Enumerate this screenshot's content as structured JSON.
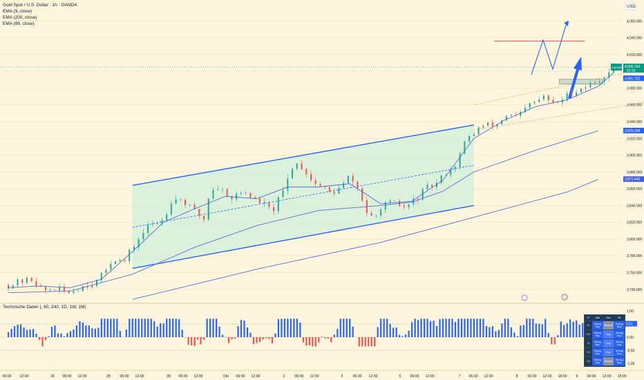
{
  "legend": {
    "title": "Gold Spot / U.S. Dollar · 1h · OANDA",
    "ema9": "EMA (9, close)",
    "ema200": "EMA (200, close)",
    "ema89": "EMA (89, close)"
  },
  "currency": "USD",
  "price_tag": {
    "symbol": "XAUUSD",
    "value": "4,006.760",
    "time": "21:22"
  },
  "level_tags": [
    "3,991.702",
    "3,929.338",
    "3,871.440"
  ],
  "indicator_label": "Technische Daten (, 60, 240, 1D, 1W, 1M)",
  "indicator_value": "0.51",
  "colors": {
    "bull": "#26a69a",
    "bear": "#ef5350",
    "channel": "#2962ff",
    "channel_fill": "#d6f0dc",
    "ema": "#5b6cd6",
    "price_line": "#26a69a",
    "target_line": "#f23645",
    "osc_pos": "#2962ff",
    "osc_neg": "#ef5350"
  },
  "table": {
    "headers": [
      "TF",
      "Abb",
      "Osc",
      "All"
    ],
    "rows": [
      {
        "tf": "60",
        "abb": "Strong Buy",
        "osc": "Neutral",
        "all": "Strong Buy"
      },
      {
        "tf": "240",
        "abb": "Strong Buy",
        "osc": "Buy",
        "all": "Strong Buy"
      },
      {
        "tf": "1D",
        "abb": "Strong Buy",
        "osc": "Buy",
        "all": "Strong Buy"
      },
      {
        "tf": "1W",
        "abb": "Strong Buy",
        "osc": "Buy",
        "all": "Strong Buy"
      },
      {
        "tf": "1M",
        "abb": "Strong Buy",
        "osc": "Neutral",
        "all": "Strong Buy"
      }
    ]
  },
  "chart_data": [
    {
      "type": "candlestick",
      "title": "Gold Spot / U.S. Dollar · 1h · OANDA",
      "ylim": [
        3725,
        4085
      ],
      "yticks": [
        "4,060.000",
        "4,040.000",
        "4,020.000",
        "4,000.000",
        "3,980.000",
        "3,960.000",
        "3,940.000",
        "3,920.000",
        "3,900.000",
        "3,880.000",
        "3,860.000",
        "3,840.000",
        "3,820.000",
        "3,800.000",
        "3,780.000",
        "3,760.000",
        "3,740.000"
      ],
      "yvalues": [
        4060,
        4040,
        4020,
        4000,
        3980,
        3960,
        3940,
        3920,
        3900,
        3880,
        3860,
        3840,
        3820,
        3800,
        3780,
        3760,
        3740
      ],
      "xticks": [
        "06:00",
        "12:00",
        "26",
        "06:00",
        "12:00",
        "28",
        "06:00",
        "12:00",
        "30",
        "06:00",
        "12:00",
        "Okt",
        "06:00",
        "12:00",
        "2",
        "06:00",
        "12:00",
        "3",
        "06:00",
        "12:00",
        "5",
        "06:00",
        "12:00",
        "7",
        "06:00",
        "12:00",
        "8",
        "06:00",
        "12:00",
        "18:00",
        "9",
        "06:00",
        "12:00",
        "18:00"
      ],
      "price_path": [
        [
          0,
          3745
        ],
        [
          10,
          3750
        ],
        [
          16,
          3752
        ],
        [
          22,
          3738
        ],
        [
          30,
          3741
        ],
        [
          38,
          3736
        ],
        [
          48,
          3744
        ],
        [
          58,
          3750
        ],
        [
          66,
          3773
        ],
        [
          70,
          3778
        ],
        [
          74,
          3770
        ],
        [
          80,
          3790
        ],
        [
          90,
          3815
        ],
        [
          100,
          3824
        ],
        [
          105,
          3846
        ],
        [
          110,
          3849
        ],
        [
          118,
          3836
        ],
        [
          126,
          3824
        ],
        [
          130,
          3858
        ],
        [
          134,
          3862
        ],
        [
          138,
          3858
        ],
        [
          144,
          3849
        ],
        [
          152,
          3857
        ],
        [
          160,
          3845
        ],
        [
          164,
          3843
        ],
        [
          170,
          3832
        ],
        [
          178,
          3860
        ],
        [
          184,
          3892
        ],
        [
          190,
          3885
        ],
        [
          196,
          3868
        ],
        [
          204,
          3860
        ],
        [
          208,
          3854
        ],
        [
          214,
          3861
        ],
        [
          220,
          3875
        ],
        [
          226,
          3857
        ],
        [
          232,
          3827
        ],
        [
          236,
          3822
        ],
        [
          240,
          3839
        ],
        [
          248,
          3843
        ],
        [
          256,
          3837
        ],
        [
          262,
          3847
        ],
        [
          270,
          3861
        ],
        [
          276,
          3866
        ],
        [
          282,
          3880
        ],
        [
          288,
          3888
        ],
        [
          295,
          3918
        ],
        [
          300,
          3927
        ],
        [
          304,
          3934
        ],
        [
          310,
          3936
        ],
        [
          316,
          3937
        ],
        [
          320,
          3948
        ],
        [
          328,
          3945
        ],
        [
          332,
          3952
        ],
        [
          336,
          3960
        ],
        [
          340,
          3963
        ],
        [
          346,
          3971
        ],
        [
          350,
          3960
        ],
        [
          356,
          3965
        ],
        [
          362,
          3974
        ],
        [
          368,
          3979
        ],
        [
          374,
          3984
        ],
        [
          380,
          3988
        ],
        [
          384,
          3995
        ],
        [
          386,
          3998
        ],
        [
          390,
          4005
        ]
      ],
      "ema9": [
        [
          0,
          3742
        ],
        [
          20,
          3744
        ],
        [
          40,
          3742
        ],
        [
          60,
          3752
        ],
        [
          80,
          3785
        ],
        [
          100,
          3820
        ],
        [
          120,
          3836
        ],
        [
          140,
          3851
        ],
        [
          160,
          3848
        ],
        [
          180,
          3862
        ],
        [
          200,
          3862
        ],
        [
          220,
          3866
        ],
        [
          240,
          3842
        ],
        [
          260,
          3845
        ],
        [
          280,
          3870
        ],
        [
          300,
          3920
        ],
        [
          320,
          3942
        ],
        [
          340,
          3958
        ],
        [
          360,
          3966
        ],
        [
          380,
          3982
        ],
        [
          390,
          3998
        ]
      ],
      "ema89": [
        [
          0,
          3736
        ],
        [
          40,
          3738
        ],
        [
          80,
          3758
        ],
        [
          120,
          3790
        ],
        [
          160,
          3816
        ],
        [
          200,
          3834
        ],
        [
          240,
          3840
        ],
        [
          260,
          3844
        ],
        [
          280,
          3857
        ],
        [
          300,
          3880
        ],
        [
          340,
          3906
        ],
        [
          380,
          3929
        ]
      ],
      "ema200": [
        [
          80,
          3728
        ],
        [
          120,
          3746
        ],
        [
          160,
          3764
        ],
        [
          200,
          3780
        ],
        [
          240,
          3796
        ],
        [
          280,
          3816
        ],
        [
          320,
          3836
        ],
        [
          360,
          3856
        ],
        [
          380,
          3871
        ]
      ],
      "channel": {
        "upper": [
          [
            80,
            3864
          ],
          [
            300,
            3936
          ]
        ],
        "lower": [
          [
            80,
            3765
          ],
          [
            300,
            3840
          ]
        ],
        "mid": [
          [
            80,
            3814
          ],
          [
            300,
            3888
          ]
        ]
      },
      "rising_channel": {
        "upper": [
          [
            300,
            3960
          ],
          [
            440,
            4015
          ]
        ],
        "lower": [
          [
            300,
            3930
          ],
          [
            440,
            3972
          ]
        ],
        "mid": [
          [
            300,
            3945
          ],
          [
            440,
            3994
          ]
        ]
      },
      "target_line_value": 4036,
      "support_zone": [
        3985,
        3988
      ]
    },
    {
      "type": "bar",
      "title": "Technische Daten (, 60, 240, 1D, 1W, 1M)",
      "ylim": [
        -1.1,
        1.1
      ],
      "yticks": [
        "1,00",
        "0,50",
        "0,00",
        "-0,50",
        "-1,00"
      ],
      "yvalues": [
        1,
        0.5,
        0,
        -0.5,
        -1
      ],
      "value": 0.51
    }
  ]
}
